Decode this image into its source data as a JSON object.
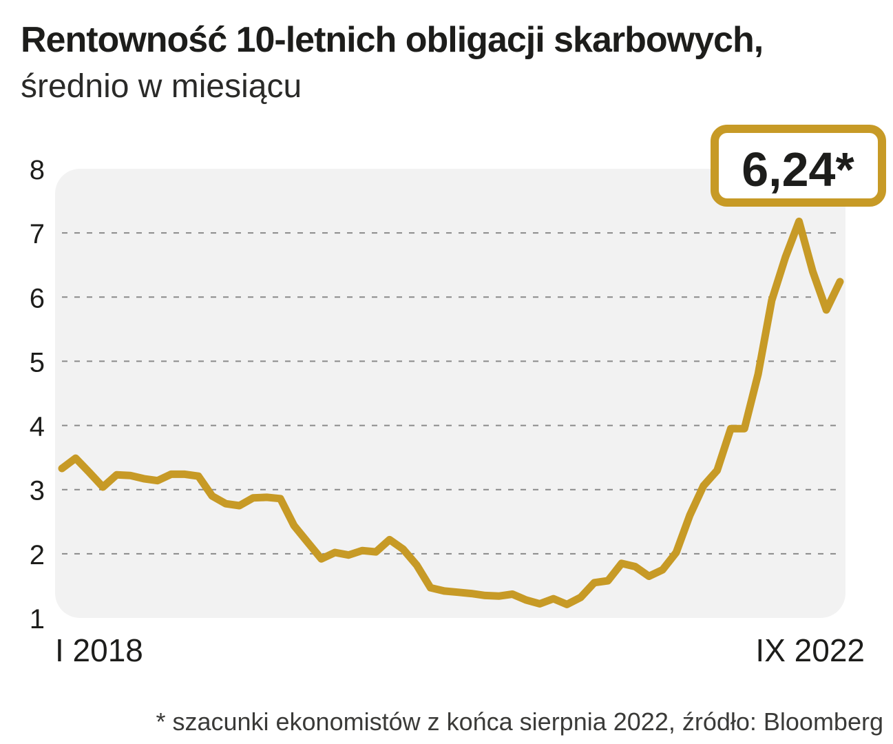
{
  "title": "Rentowność 10-letnich obligacji skarbowych,",
  "subtitle": "średnio w miesiącu",
  "footnote": "* szacunki ekonomistów z końca sierpnia 2022, źródło: Bloomberg",
  "colors": {
    "line": "#c79a26",
    "panel": "#f2f2f2",
    "grid": "#8a8a8a",
    "text": "#1d1d1b"
  },
  "chart_data": {
    "type": "line",
    "title": "Rentowność 10-letnich obligacji skarbowych,",
    "subtitle": "średnio w miesiącu",
    "xlabel": "",
    "ylabel": "",
    "ylim": [
      1,
      8
    ],
    "yticks": [
      "1",
      "2",
      "3",
      "4",
      "5",
      "6",
      "7",
      "8"
    ],
    "grid": true,
    "x_start_label": "I 2018",
    "x_end_label": "IX 2022",
    "callout": "6,24*",
    "series": [
      {
        "values": [
          3.33,
          3.49,
          3.27,
          3.04,
          3.23,
          3.22,
          3.17,
          3.14,
          3.24,
          3.24,
          3.21,
          2.9,
          2.78,
          2.75,
          2.87,
          2.88,
          2.86,
          2.44,
          2.18,
          1.92,
          2.02,
          1.98,
          2.05,
          2.03,
          2.22,
          2.07,
          1.82,
          1.47,
          1.42,
          1.4,
          1.38,
          1.35,
          1.34,
          1.37,
          1.28,
          1.22,
          1.3,
          1.21,
          1.32,
          1.55,
          1.58,
          1.85,
          1.8,
          1.65,
          1.75,
          2.02,
          2.6,
          3.06,
          3.3,
          3.95,
          3.95,
          4.8,
          5.95,
          6.62,
          7.18,
          6.4,
          5.8,
          6.24
        ]
      }
    ]
  }
}
